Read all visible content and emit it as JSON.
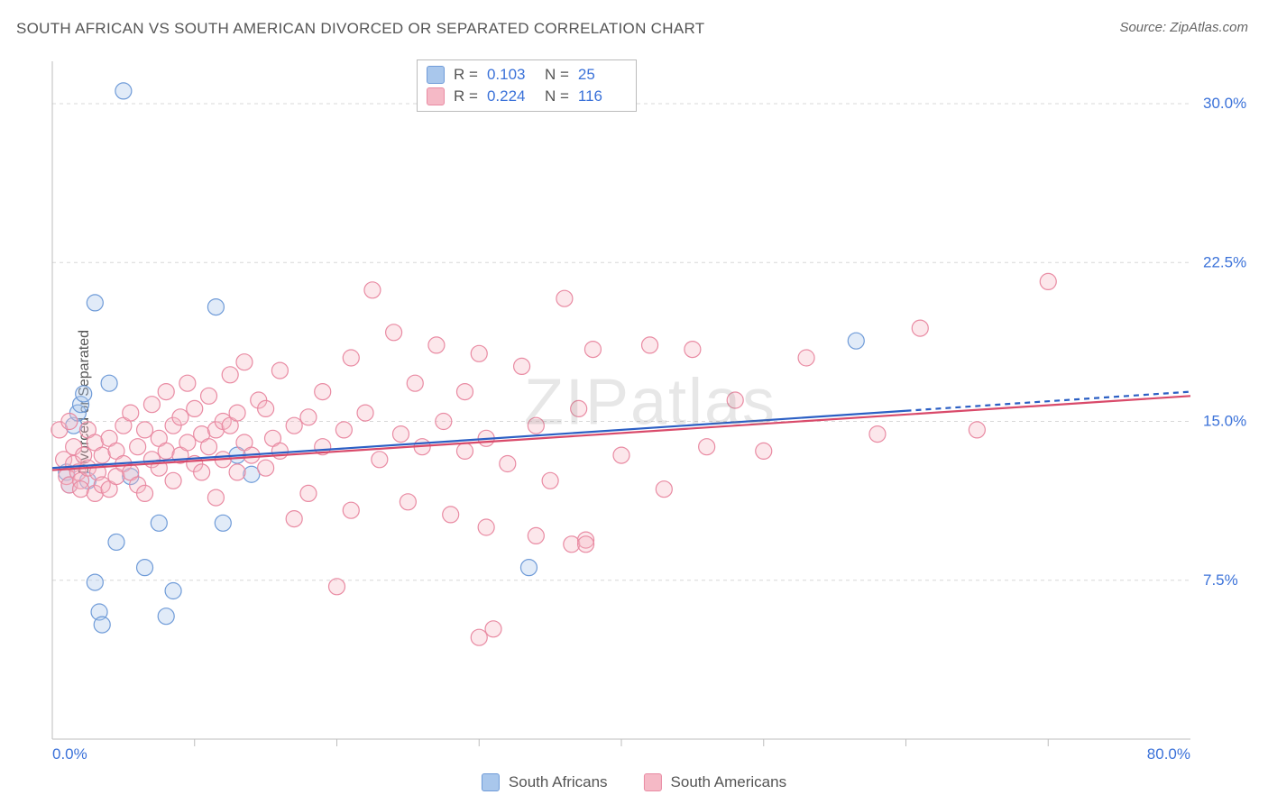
{
  "title": "SOUTH AFRICAN VS SOUTH AMERICAN DIVORCED OR SEPARATED CORRELATION CHART",
  "source": "Source: ZipAtlas.com",
  "y_axis_label": "Divorced or Separated",
  "watermark": "ZIPatlas",
  "chart": {
    "type": "scatter",
    "xlim": [
      0,
      80
    ],
    "ylim": [
      0,
      32
    ],
    "x_ticks": [
      0,
      80
    ],
    "x_tick_labels": [
      "0.0%",
      "80.0%"
    ],
    "y_ticks": [
      7.5,
      15.0,
      22.5,
      30.0
    ],
    "y_tick_labels": [
      "7.5%",
      "15.0%",
      "22.5%",
      "30.0%"
    ],
    "x_minor_ticks": [
      10,
      20,
      30,
      40,
      50,
      60,
      70
    ],
    "grid_color": "#d8d8d8",
    "background_color": "#ffffff",
    "axis_color": "#bdbdbd",
    "marker_radius": 9,
    "marker_stroke_width": 1.2,
    "marker_fill_opacity": 0.35,
    "trend_line_width": 2.2,
    "series": [
      {
        "name": "South Africans",
        "color_fill": "#a9c7ec",
        "color_stroke": "#6f9bd8",
        "line_color": "#2b5fc4",
        "r": 0.103,
        "n": 25,
        "trend": {
          "x1": 0,
          "y1": 12.8,
          "x2": 60,
          "y2": 15.5,
          "x2_dash": 80,
          "y2_dash": 16.4
        },
        "points": [
          [
            1.0,
            12.6
          ],
          [
            1.5,
            14.8
          ],
          [
            1.8,
            15.4
          ],
          [
            2.0,
            15.8
          ],
          [
            2.2,
            16.3
          ],
          [
            2.5,
            12.2
          ],
          [
            3.0,
            20.6
          ],
          [
            3.0,
            7.4
          ],
          [
            3.3,
            6.0
          ],
          [
            3.5,
            5.4
          ],
          [
            4.0,
            16.8
          ],
          [
            4.5,
            9.3
          ],
          [
            5.0,
            30.6
          ],
          [
            5.5,
            12.4
          ],
          [
            6.5,
            8.1
          ],
          [
            7.5,
            10.2
          ],
          [
            8.0,
            5.8
          ],
          [
            8.5,
            7.0
          ],
          [
            11.5,
            20.4
          ],
          [
            12.0,
            10.2
          ],
          [
            14.0,
            12.5
          ],
          [
            13.0,
            13.4
          ],
          [
            33.5,
            8.1
          ],
          [
            56.5,
            18.8
          ],
          [
            1.2,
            12.0
          ]
        ]
      },
      {
        "name": "South Americans",
        "color_fill": "#f5b9c6",
        "color_stroke": "#e98ba3",
        "line_color": "#d94a6a",
        "r": 0.224,
        "n": 116,
        "trend": {
          "x1": 0,
          "y1": 12.7,
          "x2": 80,
          "y2": 16.2
        },
        "points": [
          [
            0.5,
            14.6
          ],
          [
            0.8,
            13.2
          ],
          [
            1.0,
            12.4
          ],
          [
            1.2,
            15.0
          ],
          [
            1.2,
            12.0
          ],
          [
            1.5,
            13.0
          ],
          [
            1.5,
            13.8
          ],
          [
            1.8,
            12.6
          ],
          [
            2.0,
            12.2
          ],
          [
            2.0,
            11.8
          ],
          [
            2.2,
            13.4
          ],
          [
            2.5,
            14.6
          ],
          [
            2.5,
            12.8
          ],
          [
            3.0,
            11.6
          ],
          [
            3.0,
            14.0
          ],
          [
            3.2,
            12.6
          ],
          [
            3.5,
            13.4
          ],
          [
            3.5,
            12.0
          ],
          [
            4.0,
            14.2
          ],
          [
            4.0,
            11.8
          ],
          [
            4.5,
            13.6
          ],
          [
            4.5,
            12.4
          ],
          [
            5.0,
            14.8
          ],
          [
            5.0,
            13.0
          ],
          [
            5.5,
            12.6
          ],
          [
            5.5,
            15.4
          ],
          [
            6.0,
            12.0
          ],
          [
            6.0,
            13.8
          ],
          [
            6.5,
            14.6
          ],
          [
            6.5,
            11.6
          ],
          [
            7.0,
            13.2
          ],
          [
            7.0,
            15.8
          ],
          [
            7.5,
            12.8
          ],
          [
            7.5,
            14.2
          ],
          [
            8.0,
            13.6
          ],
          [
            8.0,
            16.4
          ],
          [
            8.5,
            14.8
          ],
          [
            8.5,
            12.2
          ],
          [
            9.0,
            15.2
          ],
          [
            9.0,
            13.4
          ],
          [
            9.5,
            14.0
          ],
          [
            9.5,
            16.8
          ],
          [
            10.0,
            13.0
          ],
          [
            10.0,
            15.6
          ],
          [
            10.5,
            12.6
          ],
          [
            10.5,
            14.4
          ],
          [
            11.0,
            13.8
          ],
          [
            11.0,
            16.2
          ],
          [
            11.5,
            14.6
          ],
          [
            11.5,
            11.4
          ],
          [
            12.0,
            15.0
          ],
          [
            12.0,
            13.2
          ],
          [
            12.5,
            17.2
          ],
          [
            12.5,
            14.8
          ],
          [
            13.0,
            12.6
          ],
          [
            13.0,
            15.4
          ],
          [
            13.5,
            14.0
          ],
          [
            13.5,
            17.8
          ],
          [
            14.0,
            13.4
          ],
          [
            14.5,
            16.0
          ],
          [
            15.0,
            12.8
          ],
          [
            15.0,
            15.6
          ],
          [
            15.5,
            14.2
          ],
          [
            16.0,
            13.6
          ],
          [
            16.0,
            17.4
          ],
          [
            17.0,
            10.4
          ],
          [
            17.0,
            14.8
          ],
          [
            18.0,
            15.2
          ],
          [
            18.0,
            11.6
          ],
          [
            19.0,
            13.8
          ],
          [
            19.0,
            16.4
          ],
          [
            20.0,
            7.2
          ],
          [
            20.5,
            14.6
          ],
          [
            21.0,
            18.0
          ],
          [
            21.0,
            10.8
          ],
          [
            22.0,
            15.4
          ],
          [
            22.5,
            21.2
          ],
          [
            23.0,
            13.2
          ],
          [
            24.0,
            19.2
          ],
          [
            24.5,
            14.4
          ],
          [
            25.0,
            11.2
          ],
          [
            25.5,
            16.8
          ],
          [
            26.0,
            13.8
          ],
          [
            27.0,
            18.6
          ],
          [
            27.5,
            15.0
          ],
          [
            28.0,
            10.6
          ],
          [
            29.0,
            16.4
          ],
          [
            29.0,
            13.6
          ],
          [
            30.0,
            18.2
          ],
          [
            30.5,
            14.2
          ],
          [
            31.0,
            5.2
          ],
          [
            32.0,
            13.0
          ],
          [
            33.0,
            17.6
          ],
          [
            34.0,
            9.6
          ],
          [
            34.0,
            14.8
          ],
          [
            35.0,
            12.2
          ],
          [
            36.0,
            20.8
          ],
          [
            36.5,
            9.2
          ],
          [
            37.0,
            15.6
          ],
          [
            37.5,
            9.4
          ],
          [
            38.0,
            18.4
          ],
          [
            40.0,
            13.4
          ],
          [
            42.0,
            18.6
          ],
          [
            43.0,
            11.8
          ],
          [
            45.0,
            18.4
          ],
          [
            46.0,
            13.8
          ],
          [
            48.0,
            16.0
          ],
          [
            50.0,
            13.6
          ],
          [
            53.0,
            18.0
          ],
          [
            58.0,
            14.4
          ],
          [
            61.0,
            19.4
          ],
          [
            65.0,
            14.6
          ],
          [
            70.0,
            21.6
          ],
          [
            30.0,
            4.8
          ],
          [
            30.5,
            10.0
          ],
          [
            37.5,
            9.2
          ]
        ]
      }
    ]
  },
  "stats_box": {
    "rows": [
      {
        "swatch_fill": "#a9c7ec",
        "swatch_stroke": "#6f9bd8",
        "r_label": "R =",
        "r_value": "0.103",
        "n_label": "N =",
        "n_value": "25"
      },
      {
        "swatch_fill": "#f5b9c6",
        "swatch_stroke": "#e98ba3",
        "r_label": "R =",
        "r_value": "0.224",
        "n_label": "N =",
        "n_value": "116"
      }
    ]
  },
  "bottom_legend": [
    {
      "swatch_fill": "#a9c7ec",
      "swatch_stroke": "#6f9bd8",
      "label": "South Africans"
    },
    {
      "swatch_fill": "#f5b9c6",
      "swatch_stroke": "#e98ba3",
      "label": "South Americans"
    }
  ]
}
